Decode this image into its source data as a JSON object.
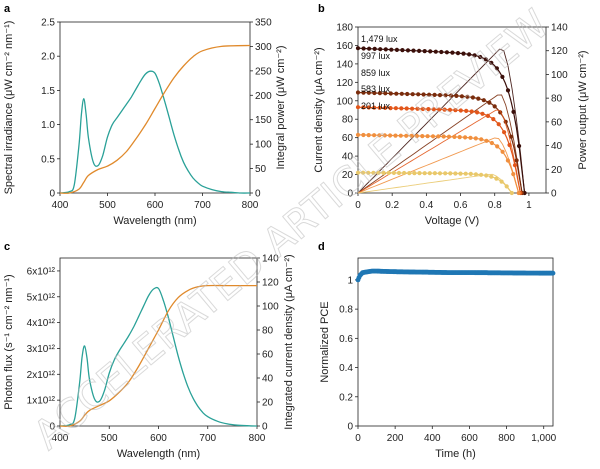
{
  "figure": {
    "watermark": "ACCELERATED ARTICLE PREVIEW"
  },
  "chart_data": [
    {
      "panel": "a",
      "type": "line",
      "xlabel": "Wavelength (nm)",
      "ylabel_left": "Spectral irradiance (μW cm⁻² nm⁻¹)",
      "ylabel_right": "Integral power (μW cm⁻²)",
      "xlim": [
        400,
        800
      ],
      "ylim_left": [
        0,
        2.5
      ],
      "ylim_right": [
        0,
        350
      ],
      "xticks": [
        400,
        500,
        600,
        700,
        800
      ],
      "yticks_left": [
        0,
        0.5,
        1.0,
        1.5,
        2.0,
        2.5
      ],
      "ytick_labels_left": [
        "0",
        "0.5",
        "1.0",
        "1.5",
        "2.0",
        "2.5"
      ],
      "yticks_right": [
        0,
        50,
        100,
        150,
        200,
        250,
        300,
        350
      ],
      "series": [
        {
          "name": "Spectral irradiance",
          "axis": "left",
          "color": "#2aa198",
          "x": [
            400,
            420,
            430,
            440,
            445,
            450,
            455,
            460,
            470,
            480,
            490,
            500,
            510,
            520,
            530,
            540,
            550,
            560,
            570,
            580,
            590,
            600,
            610,
            620,
            630,
            640,
            650,
            660,
            670,
            680,
            690,
            700,
            720,
            740,
            760,
            780,
            800
          ],
          "y": [
            0.0,
            0.02,
            0.12,
            0.7,
            1.15,
            1.38,
            1.15,
            0.8,
            0.45,
            0.4,
            0.55,
            0.82,
            1.0,
            1.1,
            1.2,
            1.3,
            1.4,
            1.52,
            1.64,
            1.74,
            1.78,
            1.75,
            1.58,
            1.35,
            1.1,
            0.85,
            0.63,
            0.45,
            0.32,
            0.22,
            0.15,
            0.1,
            0.05,
            0.02,
            0.01,
            0.0,
            0.0
          ]
        },
        {
          "name": "Integral power",
          "axis": "right",
          "color": "#e08a2c",
          "x": [
            400,
            420,
            440,
            450,
            460,
            480,
            500,
            520,
            540,
            560,
            580,
            600,
            620,
            640,
            660,
            680,
            700,
            740,
            800
          ],
          "y": [
            0,
            0,
            8,
            22,
            36,
            48,
            55,
            67,
            85,
            111,
            140,
            173,
            206,
            236,
            260,
            279,
            291,
            300,
            302
          ]
        }
      ]
    },
    {
      "panel": "b",
      "type": "line",
      "xlabel": "Voltage (V)",
      "ylabel_left": "Current density (μA cm⁻²)",
      "ylabel_right": "Power output (μW cm⁻²)",
      "xlim": [
        0,
        1.1
      ],
      "ylim_left": [
        0,
        180
      ],
      "ylim_right": [
        0,
        140
      ],
      "xticks": [
        0,
        0.2,
        0.4,
        0.6,
        0.8,
        1.0
      ],
      "xtick_labels": [
        "0",
        "0.2",
        "0.4",
        "0.6",
        "0.8",
        "1"
      ],
      "yticks_left": [
        0,
        20,
        40,
        60,
        80,
        100,
        120,
        140,
        160,
        180
      ],
      "yticks_right": [
        0,
        20,
        40,
        60,
        80,
        100,
        120,
        140
      ],
      "series": [
        {
          "name": "1,479 lux",
          "color": "#3b0f0a",
          "jsc": 157,
          "voc": 0.975,
          "vmp": 0.84,
          "pmax": 123
        },
        {
          "name": "997 lux",
          "color": "#7a2c0c",
          "jsc": 109,
          "voc": 0.96,
          "vmp": 0.83,
          "pmax": 84
        },
        {
          "name": "859 lux",
          "color": "#e2561a",
          "jsc": 93,
          "voc": 0.95,
          "vmp": 0.82,
          "pmax": 71
        },
        {
          "name": "583 lux",
          "color": "#f08f3e",
          "jsc": 63,
          "voc": 0.94,
          "vmp": 0.81,
          "pmax": 47
        },
        {
          "name": "201 lux",
          "color": "#e9c86a",
          "jsc": 22,
          "voc": 0.9,
          "vmp": 0.78,
          "pmax": 16
        }
      ]
    },
    {
      "panel": "c",
      "type": "line",
      "xlabel": "Wavelength (nm)",
      "ylabel_left": "Photon flux (s⁻¹ cm⁻² nm⁻¹)",
      "ylabel_right": "Integrated current density (μA cm⁻²)",
      "xlim": [
        400,
        800
      ],
      "ylim_left": [
        0,
        6500000000000.0
      ],
      "ylim_right": [
        0,
        140
      ],
      "xticks": [
        400,
        500,
        600,
        700,
        800
      ],
      "yticks_left": [
        0,
        1000000000000.0,
        2000000000000.0,
        3000000000000.0,
        4000000000000.0,
        5000000000000.0,
        6000000000000.0
      ],
      "ytick_labels_left": [
        "0",
        "1x10¹²",
        "2x10¹²",
        "3x10¹²",
        "4x10¹²",
        "5x10¹²",
        "6x10¹²"
      ],
      "yticks_right": [
        0,
        20,
        40,
        60,
        80,
        100,
        120,
        140
      ],
      "series": [
        {
          "name": "Photon flux",
          "axis": "left",
          "color": "#2aa198",
          "x": [
            400,
            420,
            430,
            440,
            445,
            450,
            455,
            460,
            470,
            480,
            490,
            500,
            510,
            520,
            530,
            540,
            550,
            560,
            570,
            580,
            590,
            600,
            610,
            620,
            630,
            640,
            650,
            660,
            670,
            680,
            690,
            700,
            720,
            740,
            760,
            780,
            800
          ],
          "y": [
            0.0,
            50000000000.0,
            300000000000.0,
            1700000000000.0,
            2700000000000.0,
            3100000000000.0,
            2600000000000.0,
            1800000000000.0,
            1050000000000.0,
            950000000000.0,
            1350000000000.0,
            2050000000000.0,
            2550000000000.0,
            2900000000000.0,
            3200000000000.0,
            3500000000000.0,
            3850000000000.0,
            4250000000000.0,
            4650000000000.0,
            5050000000000.0,
            5300000000000.0,
            5320000000000.0,
            4850000000000.0,
            4200000000000.0,
            3450000000000.0,
            2700000000000.0,
            2050000000000.0,
            1500000000000.0,
            1080000000000.0,
            760000000000.0,
            520000000000.0,
            360000000000.0,
            180000000000.0,
            80000000000.0,
            30000000000.0,
            10000000000.0,
            0.0
          ]
        },
        {
          "name": "Integrated current density",
          "axis": "right",
          "color": "#e08a2c",
          "x": [
            400,
            420,
            440,
            450,
            460,
            480,
            500,
            520,
            540,
            560,
            580,
            600,
            620,
            640,
            660,
            680,
            700,
            740,
            800
          ],
          "y": [
            0,
            0,
            4,
            9,
            13,
            17,
            21,
            28,
            37,
            50,
            65,
            80,
            96,
            107,
            113,
            116,
            117,
            117,
            117
          ]
        }
      ]
    },
    {
      "panel": "d",
      "type": "scatter",
      "xlabel": "Time (h)",
      "ylabel": "Normalized PCE",
      "xlim": [
        0,
        1050
      ],
      "ylim": [
        0,
        1.15
      ],
      "xticks": [
        0,
        200,
        400,
        600,
        800,
        1000
      ],
      "xtick_labels": [
        "0",
        "200",
        "400",
        "600",
        "800",
        "1,000"
      ],
      "yticks": [
        0,
        0.2,
        0.4,
        0.6,
        0.8,
        1.0
      ],
      "ytick_labels": [
        "0",
        "0.2",
        "0.4",
        "0.6",
        "0.8",
        "1"
      ],
      "series": [
        {
          "name": "Normalized PCE",
          "color": "#1f77b4",
          "x": [
            0,
            10,
            25,
            50,
            75,
            100,
            150,
            200,
            300,
            400,
            500,
            600,
            700,
            800,
            900,
            1000,
            1050
          ],
          "y": [
            1.0,
            1.03,
            1.05,
            1.055,
            1.06,
            1.06,
            1.058,
            1.056,
            1.054,
            1.052,
            1.05,
            1.05,
            1.049,
            1.048,
            1.047,
            1.046,
            1.046
          ]
        }
      ]
    }
  ]
}
